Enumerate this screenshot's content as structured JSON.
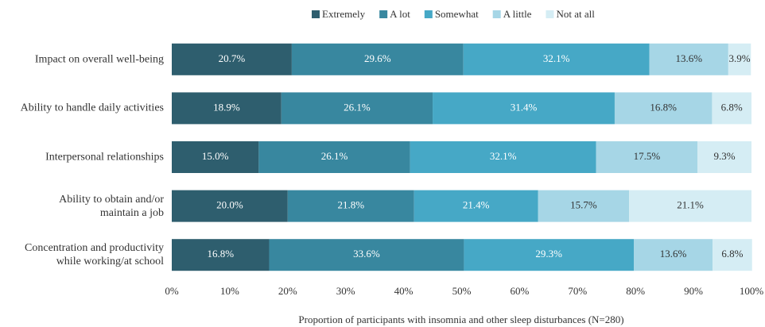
{
  "chart_data": {
    "type": "stacked_barh",
    "categories": [
      "Impact on overall well-being",
      "Ability to handle daily activities",
      "Interpersonal relationships",
      "Ability to obtain and/or\nmaintain a job",
      "Concentration and productivity\nwhile working/at school"
    ],
    "series": [
      {
        "name": "Extremely",
        "color": "#2e5e6e",
        "label_color": "#ffffff",
        "values": [
          20.7,
          18.9,
          15.0,
          20.0,
          16.8
        ],
        "value_labels": [
          "20.7%",
          "18.9%",
          "15.0%",
          "20.0%",
          "16.8%"
        ]
      },
      {
        "name": "A lot",
        "color": "#38879f",
        "label_color": "#ffffff",
        "values": [
          29.6,
          26.1,
          26.1,
          21.8,
          33.6
        ],
        "value_labels": [
          "29.6%",
          "26.1%",
          "26.1%",
          "21.8%",
          "33.6%"
        ]
      },
      {
        "name": "Somewhat",
        "color": "#46a8c6",
        "label_color": "#ffffff",
        "values": [
          32.1,
          31.4,
          32.1,
          21.4,
          29.3
        ],
        "value_labels": [
          "32.1%",
          "31.4%",
          "32.1%",
          "21.4%",
          "29.3%"
        ]
      },
      {
        "name": "A little",
        "color": "#a6d6e6",
        "label_color": "#333333",
        "values": [
          13.6,
          16.8,
          17.5,
          15.7,
          13.6
        ],
        "value_labels": [
          "13.6%",
          "16.8%",
          "17.5%",
          "15.7%",
          "13.6%"
        ]
      },
      {
        "name": "Not at all",
        "color": "#d5edf4",
        "label_color": "#333333",
        "values": [
          3.9,
          6.8,
          9.3,
          21.1,
          6.8
        ],
        "value_labels": [
          "3.9%",
          "6.8%",
          "9.3%",
          "21.1%",
          "6.8%"
        ]
      }
    ],
    "xlim": [
      0,
      100
    ],
    "xticks": [
      {
        "value": 0,
        "label": "0%"
      },
      {
        "value": 10,
        "label": "10%"
      },
      {
        "value": 20,
        "label": "20%"
      },
      {
        "value": 30,
        "label": "30%"
      },
      {
        "value": 40,
        "label": "40%"
      },
      {
        "value": 50,
        "label": "50%"
      },
      {
        "value": 60,
        "label": "60%"
      },
      {
        "value": 70,
        "label": "70%"
      },
      {
        "value": 80,
        "label": "80%"
      },
      {
        "value": 90,
        "label": "90%"
      },
      {
        "value": 100,
        "label": "100%"
      }
    ],
    "xlabel": "Proportion of participants with insomnia and other sleep disturbances (N=280)",
    "legend": "top"
  }
}
